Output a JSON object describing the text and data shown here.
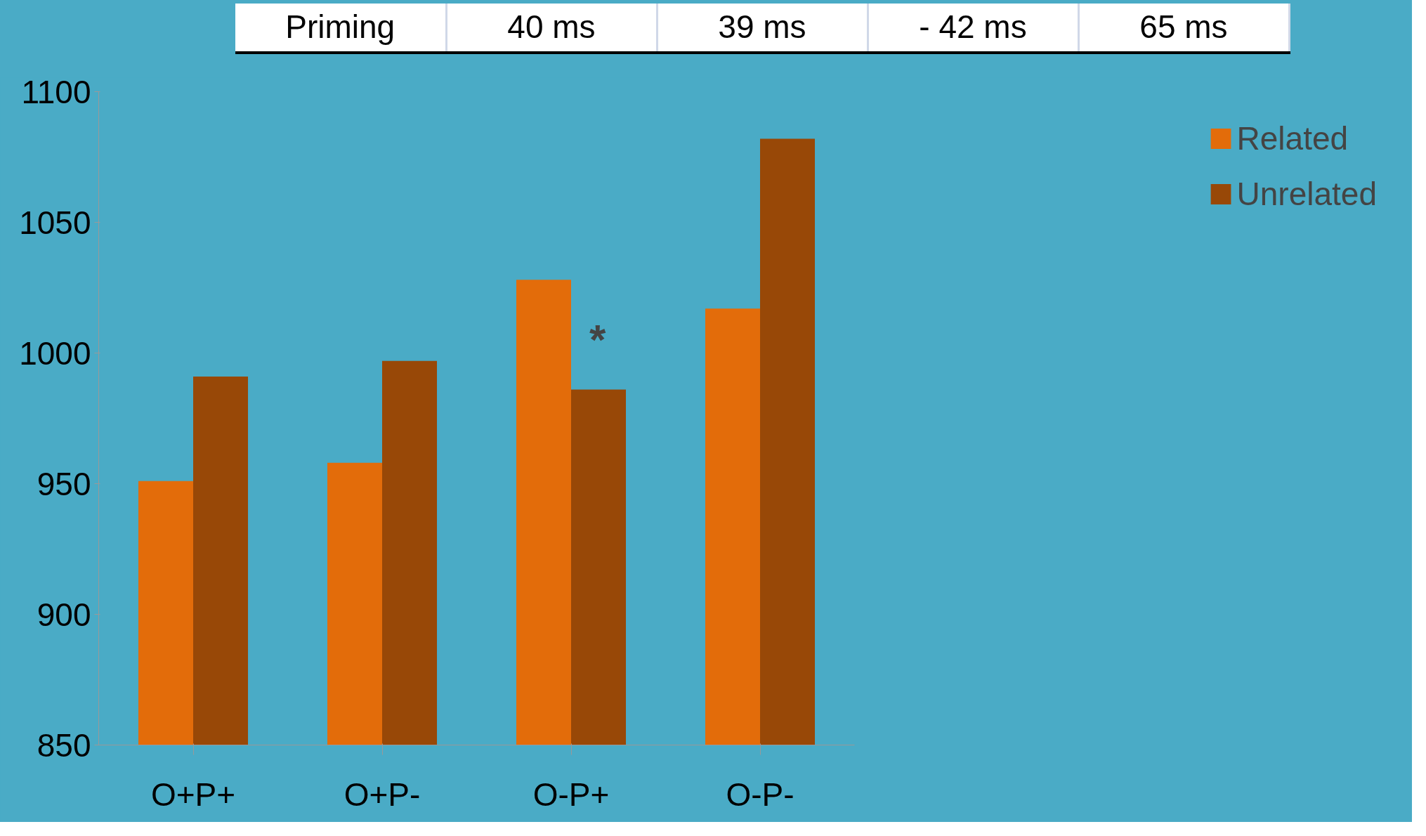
{
  "chart_data": {
    "type": "bar",
    "categories": [
      "O+P+",
      "O+P-",
      "O-P+",
      "O-P-"
    ],
    "series": [
      {
        "name": "Related",
        "color": "#e36c0a",
        "values": [
          951,
          958,
          1028,
          1017
        ]
      },
      {
        "name": "Unrelated",
        "color": "#984807",
        "values": [
          991,
          997,
          986,
          1082
        ]
      }
    ],
    "ylim": [
      850,
      1100
    ],
    "yticks": [
      850,
      900,
      950,
      1000,
      1050,
      1100
    ],
    "grid": false,
    "legend": "right",
    "annotations": [
      "Priming",
      "40 ms",
      "39 ms",
      "- 42 ms",
      "65 ms",
      {
        "text": "*",
        "x": "O-P+",
        "y": 1005
      }
    ]
  }
}
